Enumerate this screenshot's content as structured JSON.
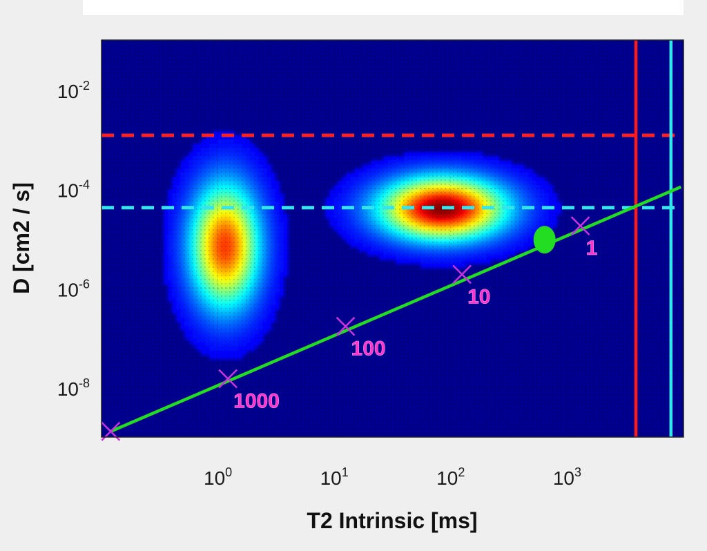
{
  "chart_data": {
    "type": "heatmap",
    "title": "",
    "xlabel": "T2 Intrinsic [ms]",
    "ylabel": "D [cm2 / s]",
    "x_scale": "log",
    "y_scale": "log",
    "xlim": [
      0.1,
      10000
    ],
    "ylim": [
      1e-09,
      0.1
    ],
    "x_ticks": [
      {
        "value": 1,
        "base": "10",
        "exp": "0"
      },
      {
        "value": 10,
        "base": "10",
        "exp": "1"
      },
      {
        "value": 100,
        "base": "10",
        "exp": "2"
      },
      {
        "value": 1000,
        "base": "10",
        "exp": "3"
      }
    ],
    "y_ticks": [
      {
        "value": 0.01,
        "base": "10",
        "exp": "-2"
      },
      {
        "value": 0.0001,
        "base": "10",
        "exp": "-4"
      },
      {
        "value": 1e-06,
        "base": "10",
        "exp": "-6"
      },
      {
        "value": 1e-08,
        "base": "10",
        "exp": "-8"
      }
    ],
    "grid": true,
    "colormap": "jet",
    "background_color": "#00008f",
    "peaks": [
      {
        "t2": 1.15,
        "d": 7e-06,
        "sigma_log_t2": 0.2,
        "sigma_log_d": 0.85,
        "intensity": 0.8
      },
      {
        "t2": 85,
        "d": 4e-05,
        "sigma_log_t2": 0.36,
        "sigma_log_d": 0.42,
        "intensity": 1.0
      }
    ],
    "reference_lines": [
      {
        "orientation": "horizontal",
        "value": 0.0012,
        "style": "dashed",
        "color": "#ff2020"
      },
      {
        "orientation": "horizontal",
        "value": 4.2e-05,
        "style": "dashed",
        "color": "#33e6ee"
      },
      {
        "orientation": "vertical",
        "value": 3900,
        "style": "solid",
        "color": "#ff1a1a"
      },
      {
        "orientation": "vertical",
        "value": 7800,
        "style": "solid",
        "color": "#33e6ee"
      }
    ],
    "diagonal_line": {
      "color": "#22dd22",
      "points": [
        [
          0.12,
          1.3e-09
        ],
        [
          9500,
          0.00011
        ]
      ]
    },
    "markers": [
      {
        "t2": 0.12,
        "d": 1.3e-09,
        "label": ""
      },
      {
        "t2": 1.22,
        "d": 1.5e-08,
        "label": "1000"
      },
      {
        "t2": 12.5,
        "d": 1.7e-07,
        "label": "100"
      },
      {
        "t2": 125,
        "d": 1.9e-06,
        "label": "10"
      },
      {
        "t2": 1300,
        "d": 1.8e-05,
        "label": "1"
      }
    ],
    "marker_color": "#cc33dd",
    "highlight_point": {
      "t2": 640,
      "d": 9.5e-06,
      "color": "#22dd22"
    }
  }
}
